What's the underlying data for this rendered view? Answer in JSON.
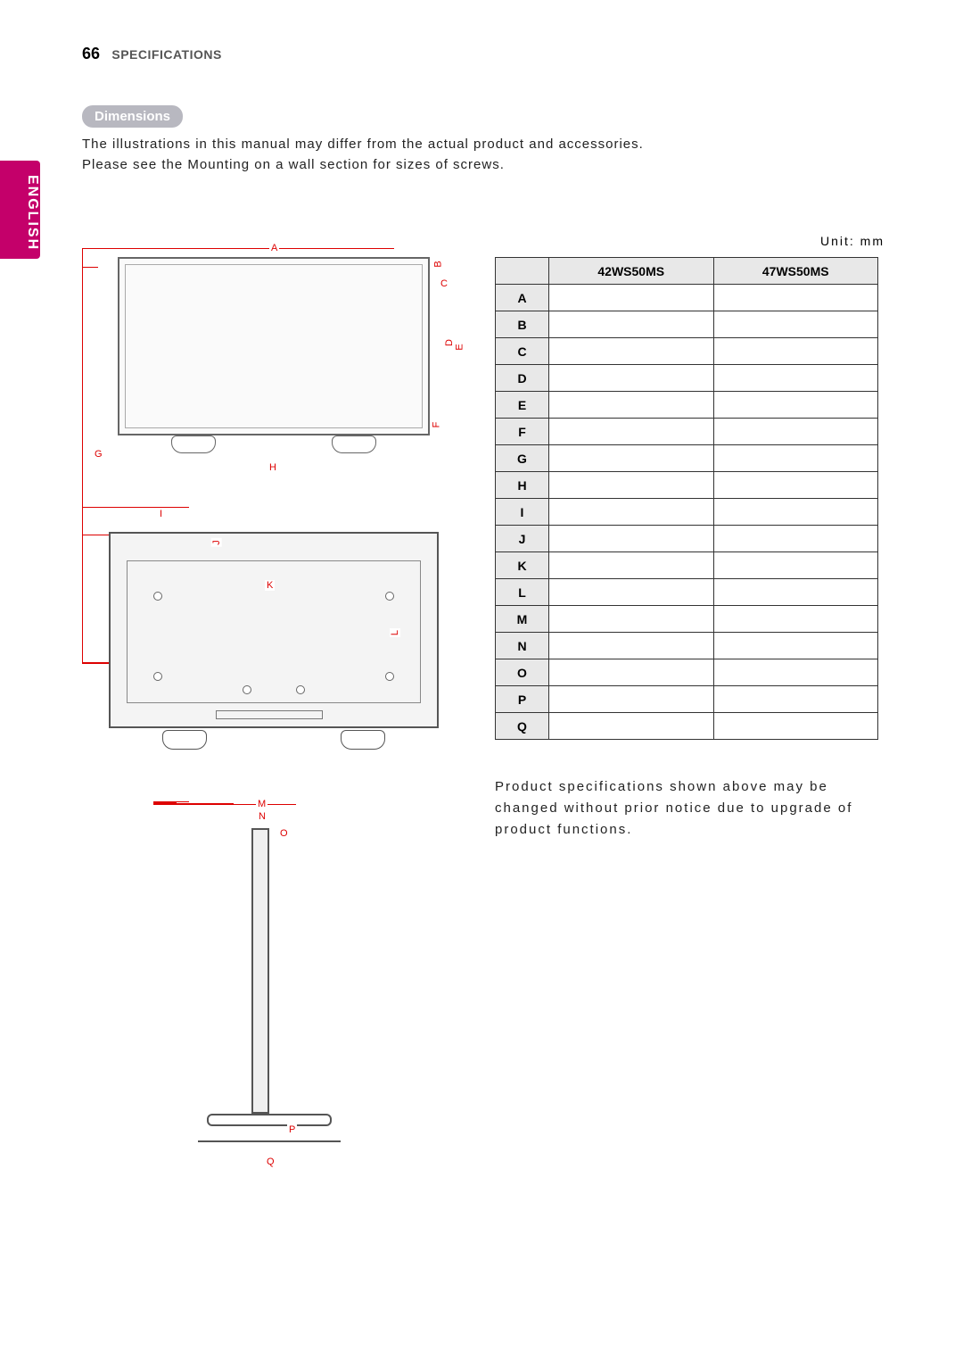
{
  "page": {
    "number": "66",
    "section": "SPECIFICATIONS",
    "language_tab": "ENGLISH"
  },
  "headings": {
    "dimensions": "Dimensions"
  },
  "body_text": "The illustrations in this manual may differ from the actual product and accessories.\nPlease see the Mounting on a wall section for sizes of screws.",
  "unit": "Unit: mm",
  "table": {
    "headers": [
      "",
      "42WS50MS",
      "47WS50MS"
    ],
    "rows": [
      {
        "key": "A",
        "v1": "",
        "v2": ""
      },
      {
        "key": "B",
        "v1": "",
        "v2": ""
      },
      {
        "key": "C",
        "v1": "",
        "v2": ""
      },
      {
        "key": "D",
        "v1": "",
        "v2": ""
      },
      {
        "key": "E",
        "v1": "",
        "v2": ""
      },
      {
        "key": "F",
        "v1": "",
        "v2": ""
      },
      {
        "key": "G",
        "v1": "",
        "v2": ""
      },
      {
        "key": "H",
        "v1": "",
        "v2": ""
      },
      {
        "key": "I",
        "v1": "",
        "v2": ""
      },
      {
        "key": "J",
        "v1": "",
        "v2": ""
      },
      {
        "key": "K",
        "v1": "",
        "v2": ""
      },
      {
        "key": "L",
        "v1": "",
        "v2": ""
      },
      {
        "key": "M",
        "v1": "",
        "v2": ""
      },
      {
        "key": "N",
        "v1": "",
        "v2": ""
      },
      {
        "key": "O",
        "v1": "",
        "v2": ""
      },
      {
        "key": "P",
        "v1": "",
        "v2": ""
      },
      {
        "key": "Q",
        "v1": "",
        "v2": ""
      }
    ]
  },
  "note": "Product specifications shown above may be changed without prior notice due to upgrade of product functions.",
  "diagrams": {
    "accent_color": "#d00",
    "front": {
      "labels": [
        "A",
        "B",
        "C",
        "D",
        "E",
        "F",
        "G",
        "H"
      ]
    },
    "back": {
      "labels": [
        "I",
        "J",
        "K",
        "L"
      ]
    },
    "side": {
      "labels": [
        "M",
        "N",
        "O",
        "P",
        "Q"
      ]
    }
  }
}
